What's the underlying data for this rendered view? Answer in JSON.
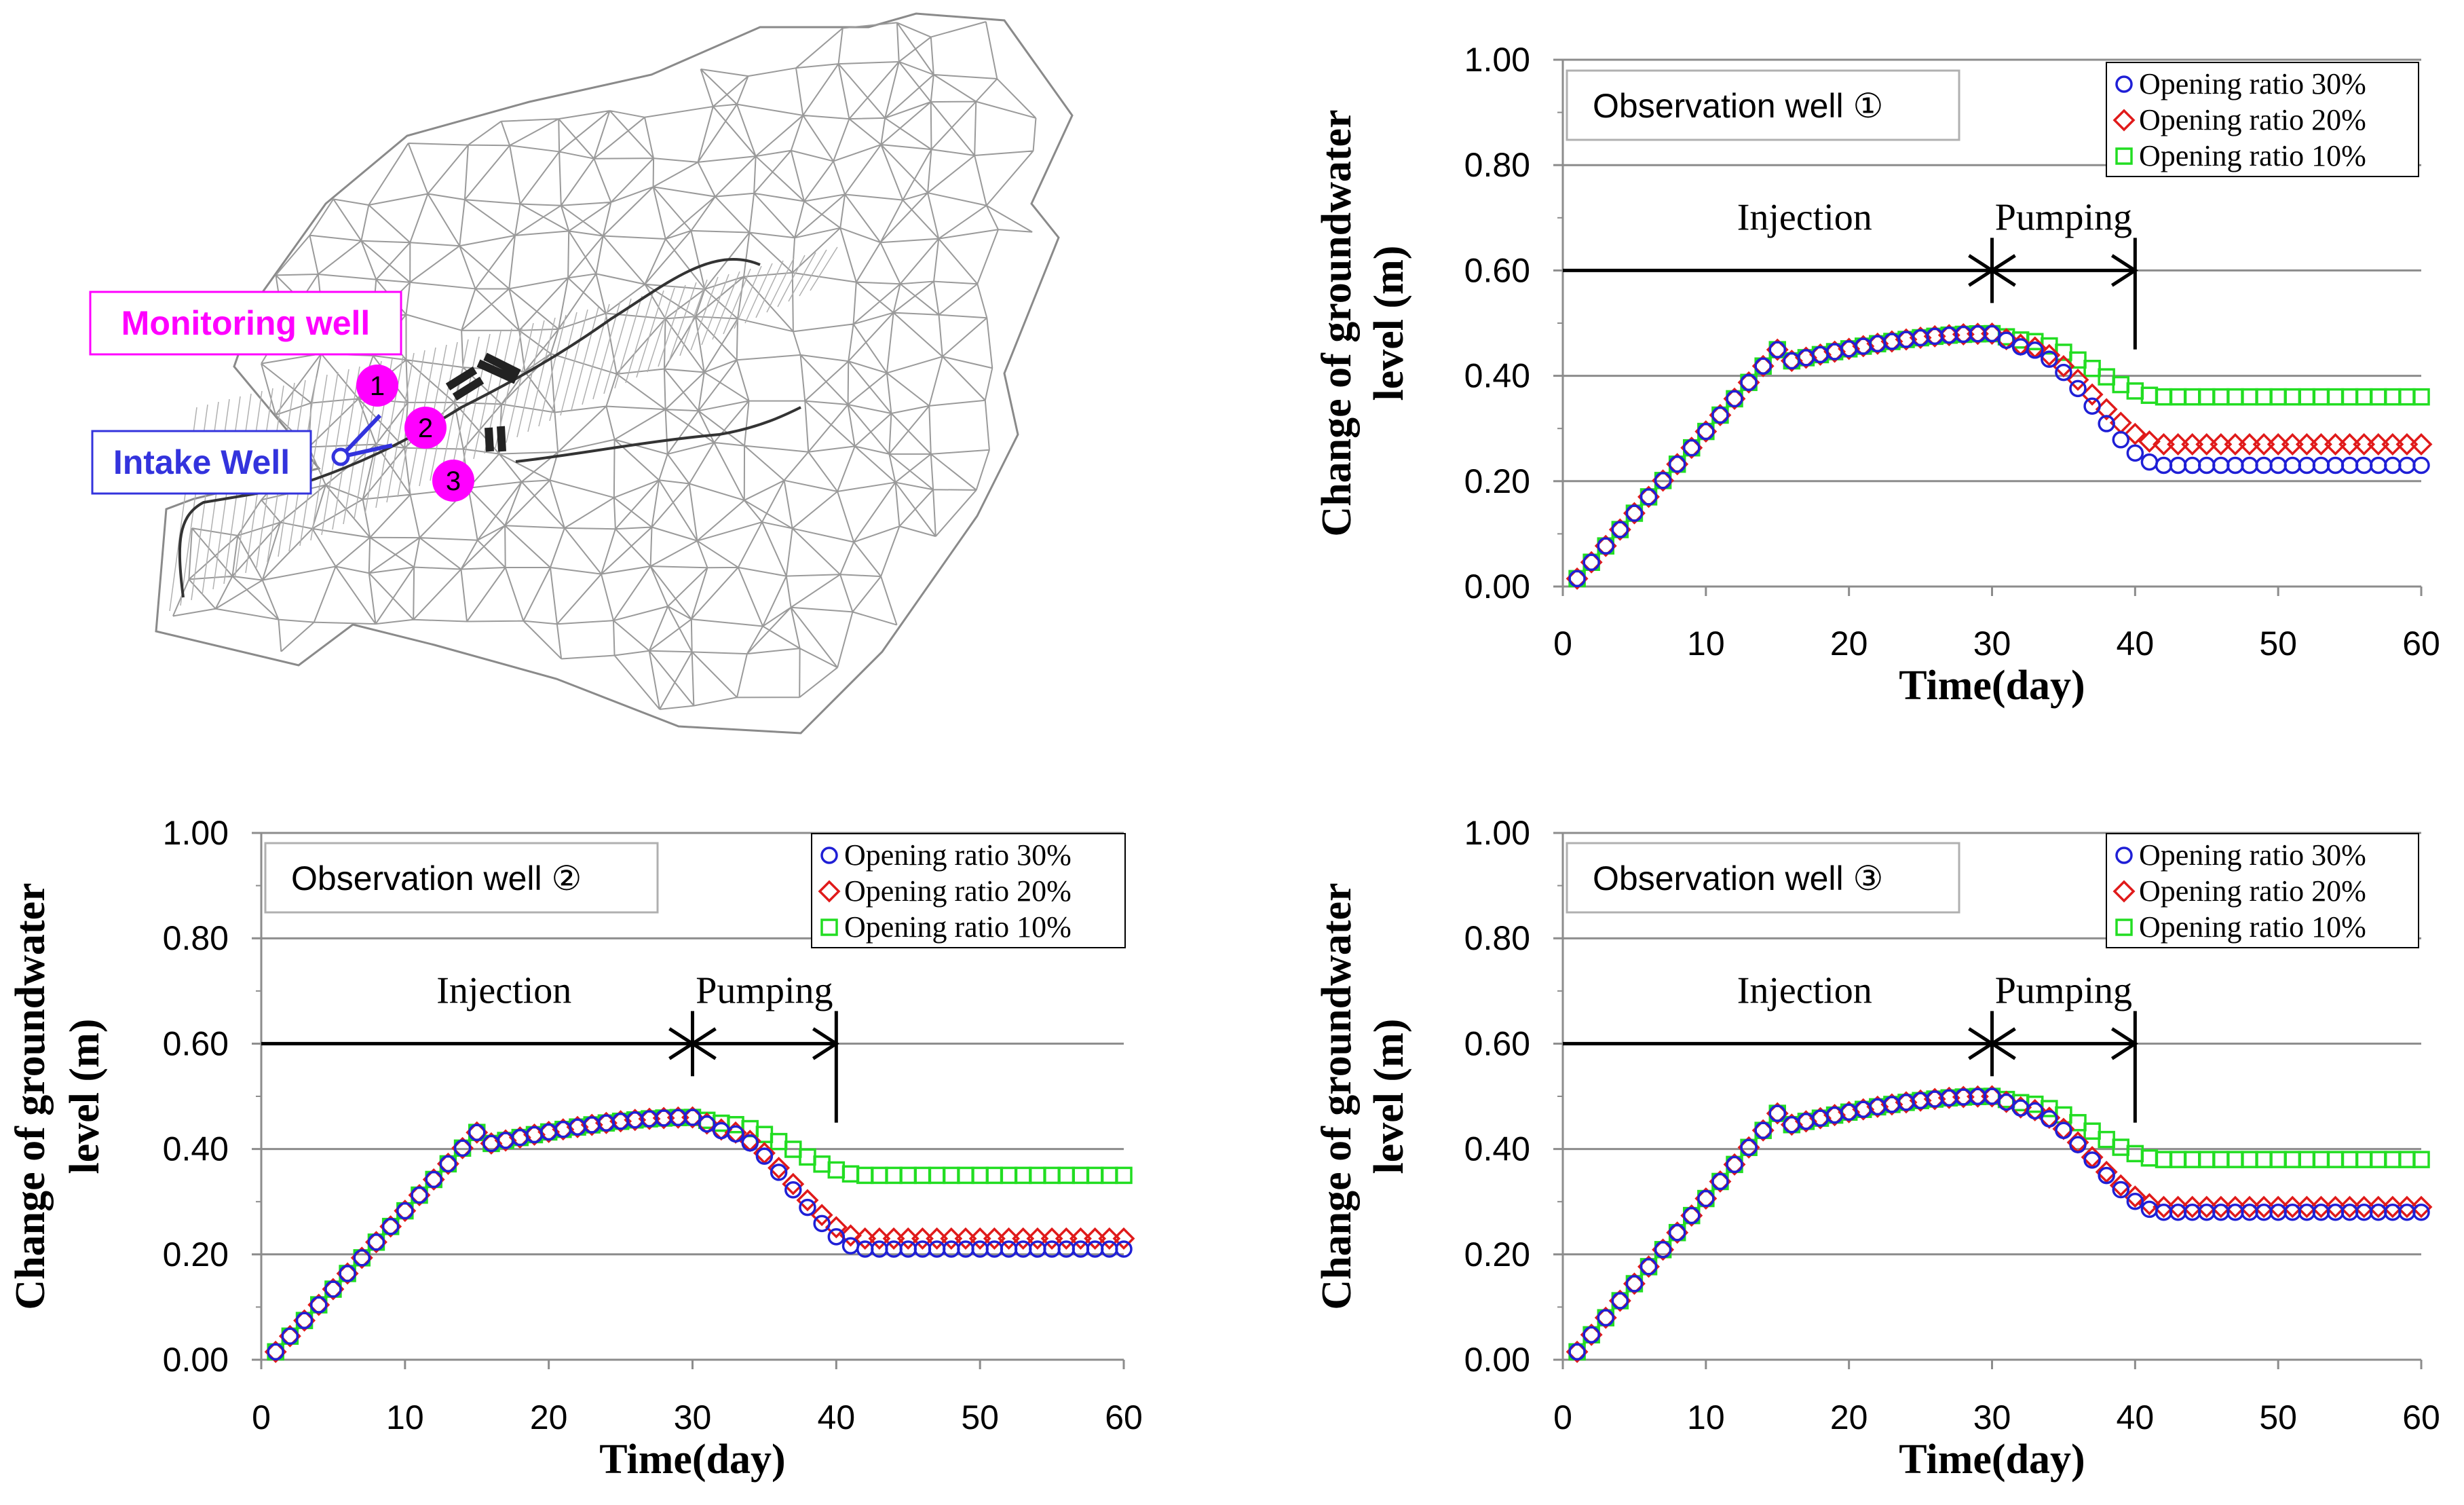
{
  "map": {
    "monitoring_label": "Monitoring well",
    "intake_label": "Intake Well",
    "well_numbers": [
      "1",
      "2",
      "3"
    ],
    "colors": {
      "monitoring": "#ff00ff",
      "intake": "#3333dd",
      "mesh": "#9a9a9a"
    }
  },
  "chart_data": [
    {
      "type": "scatter",
      "title": "Observation well ①",
      "xlabel": "Time(day)",
      "ylabel_line1": "Change of groundwater",
      "ylabel_line2": "level (m)",
      "xlim": [
        0,
        60
      ],
      "ylim": [
        0,
        1
      ],
      "x_ticks": [
        "0",
        "10",
        "20",
        "30",
        "40",
        "50",
        "60"
      ],
      "y_ticks": [
        "0.00",
        "0.20",
        "0.40",
        "0.60",
        "0.80",
        "1.00"
      ],
      "grid": true,
      "legend": "top-right",
      "annotations": {
        "injection": "Injection",
        "pumping": "Pumping",
        "arrow_level": 0.6,
        "injection_end": 30,
        "pumping_end": 40
      },
      "plateau": 0.48,
      "series": [
        {
          "name": "Opening ratio 30%",
          "marker": "circle",
          "color": "#1f1fd6",
          "final": 0.23
        },
        {
          "name": "Opening ratio 20%",
          "marker": "diamond",
          "color": "#e01a1a",
          "final": 0.27
        },
        {
          "name": "Opening ratio 10%",
          "marker": "square",
          "color": "#22dd22",
          "final": 0.36
        }
      ]
    },
    {
      "type": "scatter",
      "title": "Observation well ②",
      "xlabel": "Time(day)",
      "ylabel_line1": "Change of groundwater",
      "ylabel_line2": "level (m)",
      "xlim": [
        0,
        60
      ],
      "ylim": [
        0,
        1
      ],
      "x_ticks": [
        "0",
        "10",
        "20",
        "30",
        "40",
        "50",
        "60"
      ],
      "y_ticks": [
        "0.00",
        "0.20",
        "0.40",
        "0.60",
        "0.80",
        "1.00"
      ],
      "grid": true,
      "legend": "top-right",
      "annotations": {
        "injection": "Injection",
        "pumping": "Pumping",
        "arrow_level": 0.6,
        "injection_end": 30,
        "pumping_end": 40
      },
      "plateau": 0.46,
      "series": [
        {
          "name": "Opening ratio 30%",
          "marker": "circle",
          "color": "#1f1fd6",
          "final": 0.21
        },
        {
          "name": "Opening ratio 20%",
          "marker": "diamond",
          "color": "#e01a1a",
          "final": 0.23
        },
        {
          "name": "Opening ratio 10%",
          "marker": "square",
          "color": "#22dd22",
          "final": 0.35
        }
      ]
    },
    {
      "type": "scatter",
      "title": "Observation well ③",
      "xlabel": "Time(day)",
      "ylabel_line1": "Change of groundwater",
      "ylabel_line2": "level (m)",
      "xlim": [
        0,
        60
      ],
      "ylim": [
        0,
        1
      ],
      "x_ticks": [
        "0",
        "10",
        "20",
        "30",
        "40",
        "50",
        "60"
      ],
      "y_ticks": [
        "0.00",
        "0.20",
        "0.40",
        "0.60",
        "0.80",
        "1.00"
      ],
      "grid": true,
      "legend": "top-right",
      "annotations": {
        "injection": "Injection",
        "pumping": "Pumping",
        "arrow_level": 0.6,
        "injection_end": 30,
        "pumping_end": 40
      },
      "plateau": 0.5,
      "series": [
        {
          "name": "Opening ratio 30%",
          "marker": "circle",
          "color": "#1f1fd6",
          "final": 0.28
        },
        {
          "name": "Opening ratio 20%",
          "marker": "diamond",
          "color": "#e01a1a",
          "final": 0.29
        },
        {
          "name": "Opening ratio 10%",
          "marker": "square",
          "color": "#22dd22",
          "final": 0.38
        }
      ]
    }
  ]
}
